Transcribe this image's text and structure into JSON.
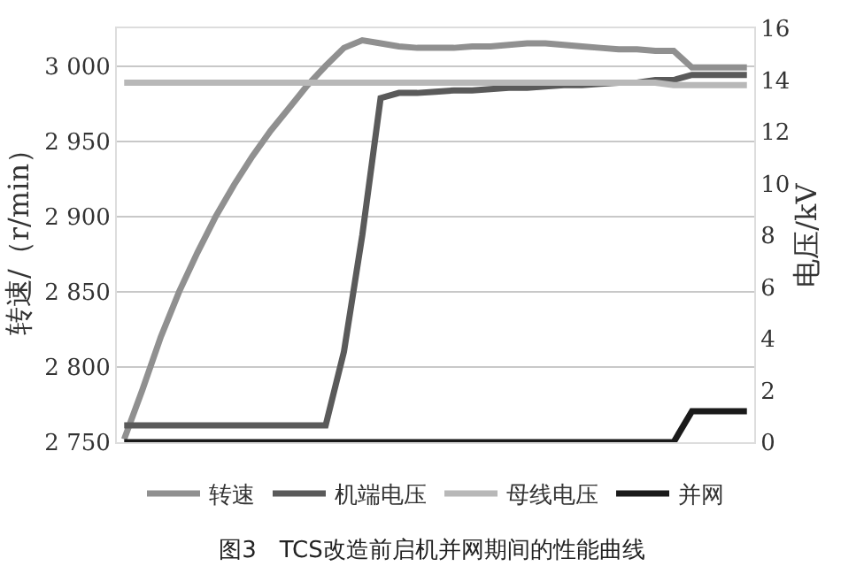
{
  "chart_data": {
    "type": "line",
    "title": "图3　TCS改造前启机并网期间的性能曲线",
    "ylabel": "转速/（r/min）",
    "y2label": "电压/kV",
    "categories": [
      null,
      null,
      null,
      null,
      null,
      null,
      null,
      null,
      null,
      null,
      null,
      null,
      null,
      null,
      null,
      null,
      null,
      null,
      null,
      null,
      null,
      null,
      null,
      null,
      null,
      null,
      null,
      null,
      null,
      null,
      null,
      null,
      null,
      null,
      null
    ],
    "ylim": [
      2750,
      3025
    ],
    "yticks": [
      {
        "value": 2750,
        "label": "2 750"
      },
      {
        "value": 2800,
        "label": "2 800"
      },
      {
        "value": 2850,
        "label": "2 850"
      },
      {
        "value": 2900,
        "label": "2 900"
      },
      {
        "value": 2950,
        "label": "2 950"
      },
      {
        "value": 3000,
        "label": "3 000"
      }
    ],
    "y2lim": [
      0,
      16
    ],
    "y2ticks": [
      0,
      2,
      4,
      6,
      8,
      10,
      12,
      14,
      16
    ],
    "grid": "y",
    "legend": "bottom",
    "marker": "none",
    "line_style": "solid",
    "series": [
      {
        "name": "转速",
        "color": "#909090",
        "values": [
          2752,
          2785,
          2820,
          2850,
          2876,
          2900,
          2921,
          2940,
          2957,
          2972,
          2987,
          3000,
          3012,
          3017,
          3015,
          3013,
          3012,
          3012,
          3012,
          3013,
          3013,
          3014,
          3015,
          3015,
          3014,
          3013,
          3012,
          3011,
          3011,
          3010,
          3010,
          2999,
          2999,
          2999,
          2999
        ]
      },
      {
        "name": "机端电压",
        "color": "#5a5a5a",
        "axis": "y2",
        "values": [
          0.65,
          0.65,
          0.65,
          0.65,
          0.65,
          0.65,
          0.65,
          0.65,
          0.65,
          0.65,
          0.65,
          0.65,
          3.5,
          8,
          13.3,
          13.5,
          13.5,
          13.55,
          13.6,
          13.6,
          13.65,
          13.7,
          13.7,
          13.75,
          13.8,
          13.8,
          13.85,
          13.9,
          13.9,
          14,
          14,
          14.2,
          14.2,
          14.2,
          14.2
        ]
      },
      {
        "name": "母线电压",
        "color": "#b8b8b8",
        "axis": "y2",
        "values": [
          13.9,
          13.9,
          13.9,
          13.9,
          13.9,
          13.9,
          13.9,
          13.9,
          13.9,
          13.9,
          13.9,
          13.9,
          13.9,
          13.9,
          13.9,
          13.9,
          13.9,
          13.9,
          13.9,
          13.9,
          13.9,
          13.9,
          13.9,
          13.9,
          13.9,
          13.9,
          13.9,
          13.9,
          13.9,
          13.9,
          13.8,
          13.8,
          13.8,
          13.8,
          13.8
        ]
      },
      {
        "name": "并网",
        "color": "#1a1a1a",
        "axis": "y2",
        "values": [
          0,
          0,
          0,
          0,
          0,
          0,
          0,
          0,
          0,
          0,
          0,
          0,
          0,
          0,
          0,
          0,
          0,
          0,
          0,
          0,
          0,
          0,
          0,
          0,
          0,
          0,
          0,
          0,
          0,
          0,
          0,
          1.2,
          1.2,
          1.2,
          1.2
        ]
      }
    ]
  }
}
